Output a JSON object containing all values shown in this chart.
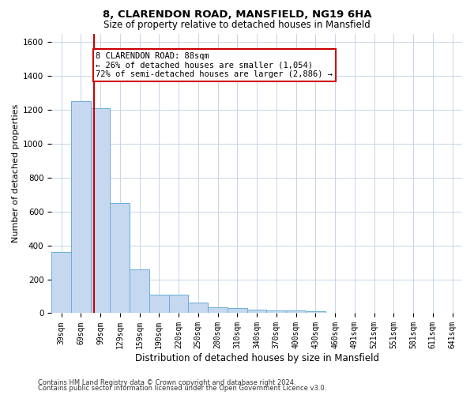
{
  "title": "8, CLARENDON ROAD, MANSFIELD, NG19 6HA",
  "subtitle": "Size of property relative to detached houses in Mansfield",
  "xlabel": "Distribution of detached houses by size in Mansfield",
  "ylabel": "Number of detached properties",
  "categories": [
    "39sqm",
    "69sqm",
    "99sqm",
    "129sqm",
    "159sqm",
    "190sqm",
    "220sqm",
    "250sqm",
    "280sqm",
    "310sqm",
    "340sqm",
    "370sqm",
    "400sqm",
    "430sqm",
    "460sqm",
    "491sqm",
    "521sqm",
    "551sqm",
    "581sqm",
    "611sqm",
    "641sqm"
  ],
  "values": [
    360,
    1250,
    1210,
    650,
    260,
    110,
    110,
    65,
    35,
    30,
    20,
    15,
    15,
    10,
    0,
    0,
    0,
    0,
    0,
    0,
    0
  ],
  "bar_color": "#c5d8f0",
  "bar_edge_color": "#6aaed6",
  "red_line_x": 1.67,
  "annotation_text": "8 CLARENDON ROAD: 88sqm\n← 26% of detached houses are smaller (1,054)\n72% of semi-detached houses are larger (2,886) →",
  "annotation_box_color": "#ffffff",
  "annotation_box_edge": "#cc0000",
  "red_line_color": "#cc0000",
  "ylim": [
    0,
    1650
  ],
  "yticks": [
    0,
    200,
    400,
    600,
    800,
    1000,
    1200,
    1400,
    1600
  ],
  "footer_line1": "Contains HM Land Registry data © Crown copyright and database right 2024.",
  "footer_line2": "Contains public sector information licensed under the Open Government Licence v3.0.",
  "background_color": "#ffffff",
  "grid_color": "#c8d4e8"
}
